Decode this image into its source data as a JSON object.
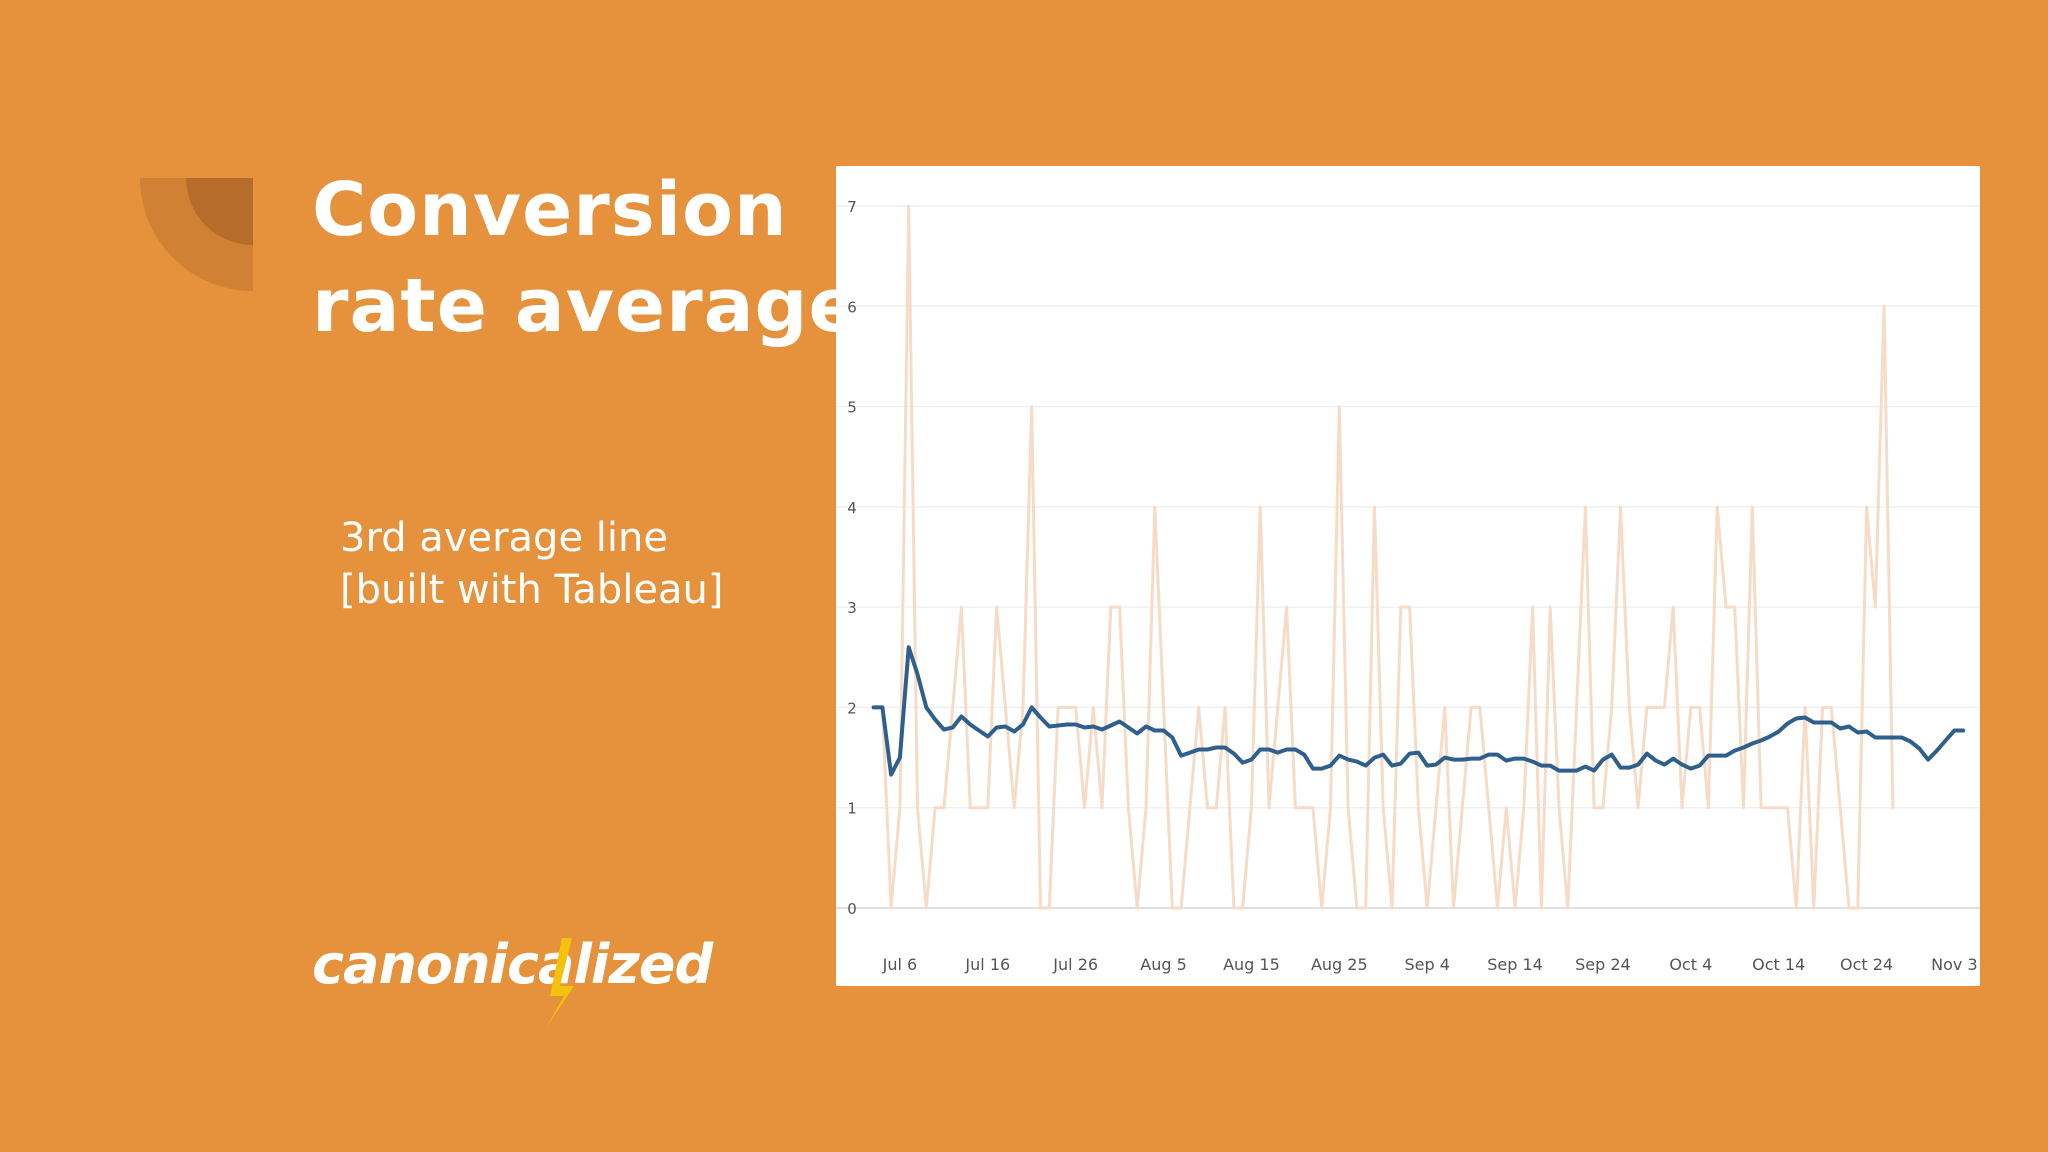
{
  "slide": {
    "title_line1": "Conversion",
    "title_line2": "rate average",
    "subtitle_line1": "3rd average line",
    "subtitle_line2": "[built with Tableau]",
    "logo_text": "canonicalized"
  },
  "colors": {
    "background": "#e6913b",
    "title_text": "#ffffff",
    "chart_background": "#ffffff",
    "raw_series": "#f6dcc7",
    "average_series": "#2f5f8c",
    "logo_bolt": "#f4c20d"
  },
  "chart_data": {
    "type": "line",
    "xlabel": "",
    "ylabel": "",
    "title": "",
    "x_ticks": [
      "Jul 6",
      "Jul 16",
      "Jul 26",
      "Aug 5",
      "Aug 15",
      "Aug 25",
      "Sep 4",
      "Sep 14",
      "Sep 24",
      "Oct 4",
      "Oct 14",
      "Oct 24",
      "Nov 3"
    ],
    "y_ticks": [
      "0",
      "1",
      "2",
      "3",
      "4",
      "5",
      "6",
      "7"
    ],
    "ylim": [
      0,
      7
    ],
    "xlim": [
      "2023-07-01",
      "2023-11-05"
    ],
    "grid": "horizontal",
    "legend": "none",
    "series": [
      {
        "style": "raw",
        "points": [
          [
            "2023-07-03",
            2
          ],
          [
            "2023-07-04",
            2
          ],
          [
            "2023-07-05",
            0
          ],
          [
            "2023-07-06",
            1
          ],
          [
            "2023-07-07",
            7
          ],
          [
            "2023-07-08",
            1
          ],
          [
            "2023-07-09",
            0
          ],
          [
            "2023-07-10",
            1
          ],
          [
            "2023-07-11",
            1
          ],
          [
            "2023-07-12",
            2
          ],
          [
            "2023-07-13",
            3
          ],
          [
            "2023-07-14",
            1
          ],
          [
            "2023-07-15",
            1
          ],
          [
            "2023-07-16",
            1
          ],
          [
            "2023-07-17",
            3
          ],
          [
            "2023-07-18",
            2
          ],
          [
            "2023-07-19",
            1
          ],
          [
            "2023-07-20",
            2
          ],
          [
            "2023-07-21",
            5
          ],
          [
            "2023-07-22",
            0
          ],
          [
            "2023-07-23",
            0
          ],
          [
            "2023-07-24",
            2
          ],
          [
            "2023-07-25",
            2
          ],
          [
            "2023-07-26",
            2
          ],
          [
            "2023-07-27",
            1
          ],
          [
            "2023-07-28",
            2
          ],
          [
            "2023-07-29",
            1
          ],
          [
            "2023-07-30",
            3
          ],
          [
            "2023-07-31",
            3
          ],
          [
            "2023-08-01",
            1
          ],
          [
            "2023-08-02",
            0
          ],
          [
            "2023-08-03",
            1
          ],
          [
            "2023-08-04",
            4
          ],
          [
            "2023-08-05",
            2
          ],
          [
            "2023-08-06",
            0
          ],
          [
            "2023-08-07",
            0
          ],
          [
            "2023-08-08",
            1
          ],
          [
            "2023-08-09",
            2
          ],
          [
            "2023-08-10",
            1
          ],
          [
            "2023-08-11",
            1
          ],
          [
            "2023-08-12",
            2
          ],
          [
            "2023-08-13",
            0
          ],
          [
            "2023-08-14",
            0
          ],
          [
            "2023-08-15",
            1
          ],
          [
            "2023-08-16",
            4
          ],
          [
            "2023-08-17",
            1
          ],
          [
            "2023-08-18",
            2
          ],
          [
            "2023-08-19",
            3
          ],
          [
            "2023-08-20",
            1
          ],
          [
            "2023-08-21",
            1
          ],
          [
            "2023-08-22",
            1
          ],
          [
            "2023-08-23",
            0
          ],
          [
            "2023-08-24",
            1
          ],
          [
            "2023-08-25",
            5
          ],
          [
            "2023-08-26",
            1
          ],
          [
            "2023-08-27",
            0
          ],
          [
            "2023-08-28",
            0
          ],
          [
            "2023-08-29",
            4
          ],
          [
            "2023-08-30",
            1
          ],
          [
            "2023-08-31",
            0
          ],
          [
            "2023-09-01",
            3
          ],
          [
            "2023-09-02",
            3
          ],
          [
            "2023-09-03",
            1
          ],
          [
            "2023-09-04",
            0
          ],
          [
            "2023-09-05",
            1
          ],
          [
            "2023-09-06",
            2
          ],
          [
            "2023-09-07",
            0
          ],
          [
            "2023-09-08",
            1
          ],
          [
            "2023-09-09",
            2
          ],
          [
            "2023-09-10",
            2
          ],
          [
            "2023-09-11",
            1
          ],
          [
            "2023-09-12",
            0
          ],
          [
            "2023-09-13",
            1
          ],
          [
            "2023-09-14",
            0
          ],
          [
            "2023-09-15",
            1
          ],
          [
            "2023-09-16",
            3
          ],
          [
            "2023-09-17",
            0
          ],
          [
            "2023-09-18",
            3
          ],
          [
            "2023-09-19",
            1
          ],
          [
            "2023-09-20",
            0
          ],
          [
            "2023-09-21",
            2
          ],
          [
            "2023-09-22",
            4
          ],
          [
            "2023-09-23",
            1
          ],
          [
            "2023-09-24",
            1
          ],
          [
            "2023-09-25",
            2
          ],
          [
            "2023-09-26",
            4
          ],
          [
            "2023-09-27",
            2
          ],
          [
            "2023-09-28",
            1
          ],
          [
            "2023-09-29",
            2
          ],
          [
            "2023-09-30",
            2
          ],
          [
            "2023-10-01",
            2
          ],
          [
            "2023-10-02",
            3
          ],
          [
            "2023-10-03",
            1
          ],
          [
            "2023-10-04",
            2
          ],
          [
            "2023-10-05",
            2
          ],
          [
            "2023-10-06",
            1
          ],
          [
            "2023-10-07",
            4
          ],
          [
            "2023-10-08",
            3
          ],
          [
            "2023-10-09",
            3
          ],
          [
            "2023-10-10",
            1
          ],
          [
            "2023-10-11",
            4
          ],
          [
            "2023-10-12",
            1
          ],
          [
            "2023-10-13",
            1
          ],
          [
            "2023-10-14",
            1
          ],
          [
            "2023-10-15",
            1
          ],
          [
            "2023-10-16",
            0
          ],
          [
            "2023-10-17",
            2
          ],
          [
            "2023-10-18",
            0
          ],
          [
            "2023-10-19",
            2
          ],
          [
            "2023-10-20",
            2
          ],
          [
            "2023-10-21",
            1
          ],
          [
            "2023-10-22",
            0
          ],
          [
            "2023-10-23",
            0
          ],
          [
            "2023-10-24",
            4
          ],
          [
            "2023-10-25",
            3
          ],
          [
            "2023-10-26",
            6
          ],
          [
            "2023-10-27",
            1
          ]
        ]
      },
      {
        "style": "average",
        "points": [
          [
            "2023-07-03",
            2.0
          ],
          [
            "2023-07-04",
            2.0
          ],
          [
            "2023-07-05",
            1.33
          ],
          [
            "2023-07-06",
            1.5
          ],
          [
            "2023-07-07",
            2.6
          ],
          [
            "2023-07-08",
            2.33
          ],
          [
            "2023-07-09",
            2.0
          ],
          [
            "2023-07-10",
            1.88
          ],
          [
            "2023-07-11",
            1.78
          ],
          [
            "2023-07-12",
            1.8
          ],
          [
            "2023-07-13",
            1.91
          ],
          [
            "2023-07-14",
            1.83
          ],
          [
            "2023-07-15",
            1.77
          ],
          [
            "2023-07-16",
            1.71
          ],
          [
            "2023-07-17",
            1.8
          ],
          [
            "2023-07-18",
            1.81
          ],
          [
            "2023-07-19",
            1.76
          ],
          [
            "2023-07-20",
            1.83
          ],
          [
            "2023-07-21",
            2.0
          ],
          [
            "2023-07-22",
            1.9
          ],
          [
            "2023-07-23",
            1.81
          ],
          [
            "2023-07-24",
            1.82
          ],
          [
            "2023-07-25",
            1.83
          ],
          [
            "2023-07-26",
            1.83
          ],
          [
            "2023-07-27",
            1.8
          ],
          [
            "2023-07-28",
            1.81
          ],
          [
            "2023-07-29",
            1.78
          ],
          [
            "2023-07-30",
            1.82
          ],
          [
            "2023-07-31",
            1.86
          ],
          [
            "2023-08-01",
            1.8
          ],
          [
            "2023-08-02",
            1.74
          ],
          [
            "2023-08-03",
            1.81
          ],
          [
            "2023-08-04",
            1.77
          ],
          [
            "2023-08-05",
            1.77
          ],
          [
            "2023-08-06",
            1.7
          ],
          [
            "2023-08-07",
            1.52
          ],
          [
            "2023-08-08",
            1.55
          ],
          [
            "2023-08-09",
            1.58
          ],
          [
            "2023-08-10",
            1.58
          ],
          [
            "2023-08-11",
            1.6
          ],
          [
            "2023-08-12",
            1.6
          ],
          [
            "2023-08-13",
            1.54
          ],
          [
            "2023-08-14",
            1.45
          ],
          [
            "2023-08-15",
            1.48
          ],
          [
            "2023-08-16",
            1.58
          ],
          [
            "2023-08-17",
            1.58
          ],
          [
            "2023-08-18",
            1.55
          ],
          [
            "2023-08-19",
            1.58
          ],
          [
            "2023-08-20",
            1.58
          ],
          [
            "2023-08-21",
            1.53
          ],
          [
            "2023-08-22",
            1.39
          ],
          [
            "2023-08-23",
            1.39
          ],
          [
            "2023-08-24",
            1.42
          ],
          [
            "2023-08-25",
            1.52
          ],
          [
            "2023-08-26",
            1.48
          ],
          [
            "2023-08-27",
            1.46
          ],
          [
            "2023-08-28",
            1.42
          ],
          [
            "2023-08-29",
            1.5
          ],
          [
            "2023-08-30",
            1.53
          ],
          [
            "2023-08-31",
            1.42
          ],
          [
            "2023-09-01",
            1.44
          ],
          [
            "2023-09-02",
            1.54
          ],
          [
            "2023-09-03",
            1.55
          ],
          [
            "2023-09-04",
            1.42
          ],
          [
            "2023-09-05",
            1.43
          ],
          [
            "2023-09-06",
            1.5
          ],
          [
            "2023-09-07",
            1.48
          ],
          [
            "2023-09-08",
            1.48
          ],
          [
            "2023-09-09",
            1.49
          ],
          [
            "2023-09-10",
            1.49
          ],
          [
            "2023-09-11",
            1.53
          ],
          [
            "2023-09-12",
            1.53
          ],
          [
            "2023-09-13",
            1.47
          ],
          [
            "2023-09-14",
            1.49
          ],
          [
            "2023-09-15",
            1.49
          ],
          [
            "2023-09-16",
            1.46
          ],
          [
            "2023-09-17",
            1.42
          ],
          [
            "2023-09-18",
            1.42
          ],
          [
            "2023-09-19",
            1.37
          ],
          [
            "2023-09-20",
            1.37
          ],
          [
            "2023-09-21",
            1.37
          ],
          [
            "2023-09-22",
            1.41
          ],
          [
            "2023-09-23",
            1.37
          ],
          [
            "2023-09-24",
            1.48
          ],
          [
            "2023-09-25",
            1.53
          ],
          [
            "2023-09-26",
            1.4
          ],
          [
            "2023-09-27",
            1.4
          ],
          [
            "2023-09-28",
            1.43
          ],
          [
            "2023-09-29",
            1.54
          ],
          [
            "2023-09-30",
            1.47
          ],
          [
            "2023-10-01",
            1.43
          ],
          [
            "2023-10-02",
            1.49
          ],
          [
            "2023-10-03",
            1.43
          ],
          [
            "2023-10-04",
            1.39
          ],
          [
            "2023-10-05",
            1.42
          ],
          [
            "2023-10-06",
            1.52
          ],
          [
            "2023-10-07",
            1.52
          ],
          [
            "2023-10-08",
            1.52
          ],
          [
            "2023-10-09",
            1.57
          ],
          [
            "2023-10-10",
            1.6
          ],
          [
            "2023-10-11",
            1.64
          ],
          [
            "2023-10-12",
            1.67
          ],
          [
            "2023-10-13",
            1.71
          ],
          [
            "2023-10-14",
            1.76
          ],
          [
            "2023-10-15",
            1.84
          ],
          [
            "2023-10-16",
            1.89
          ],
          [
            "2023-10-17",
            1.9
          ],
          [
            "2023-10-18",
            1.85
          ],
          [
            "2023-10-19",
            1.85
          ],
          [
            "2023-10-20",
            1.85
          ],
          [
            "2023-10-21",
            1.79
          ],
          [
            "2023-10-22",
            1.81
          ],
          [
            "2023-10-23",
            1.75
          ],
          [
            "2023-10-24",
            1.76
          ],
          [
            "2023-10-25",
            1.7
          ],
          [
            "2023-10-26",
            1.7
          ],
          [
            "2023-10-27",
            1.7
          ],
          [
            "2023-10-28",
            1.7
          ],
          [
            "2023-10-29",
            1.66
          ],
          [
            "2023-10-30",
            1.59
          ],
          [
            "2023-10-31",
            1.48
          ],
          [
            "2023-11-01",
            1.57
          ],
          [
            "2023-11-02",
            1.67
          ],
          [
            "2023-11-03",
            1.77
          ],
          [
            "2023-11-04",
            1.77
          ]
        ]
      }
    ]
  }
}
